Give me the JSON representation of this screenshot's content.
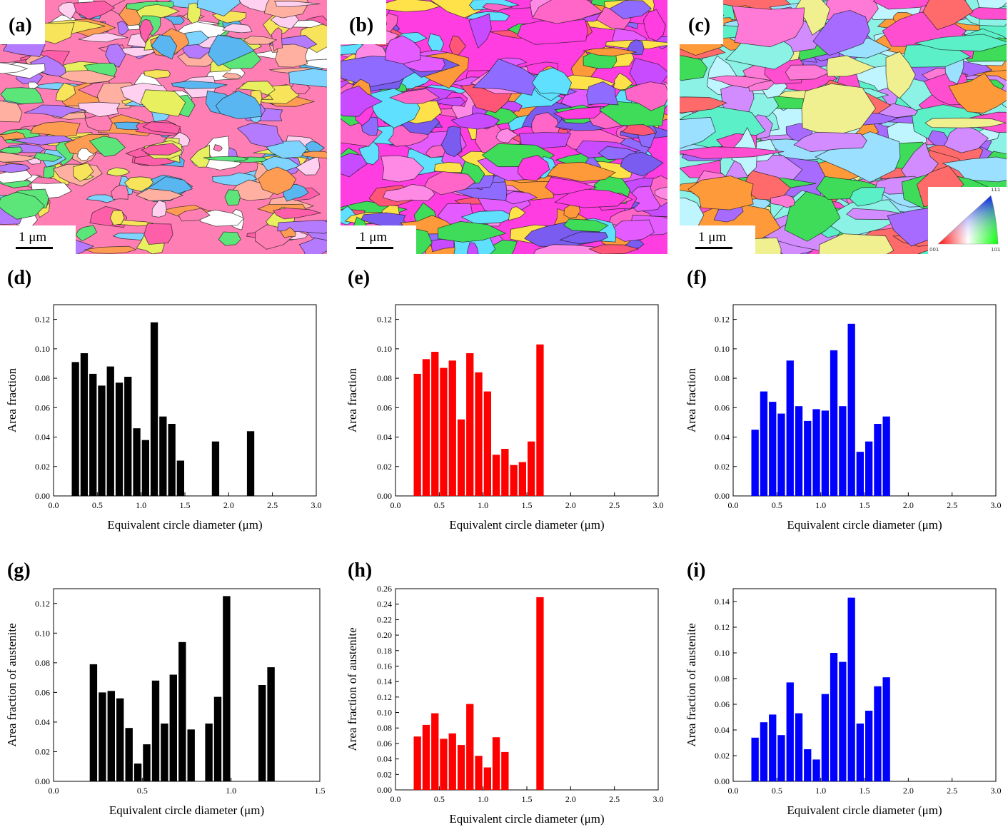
{
  "micrographs": [
    {
      "label": "(a)",
      "scale_text": "1 μm",
      "palette": [
        "#ff7fb4",
        "#f7e45a",
        "#7fd3ff",
        "#ff9c54",
        "#b57bff",
        "#5ce67a",
        "#ff5fa8",
        "#ffd0f0",
        "#59b6f0",
        "#e8f060",
        "#ffb0a0",
        "#ffffff"
      ]
    },
    {
      "label": "(b)",
      "scale_text": "1 μm",
      "palette": [
        "#ff3de0",
        "#c84bff",
        "#7a5cf0",
        "#ff9a3a",
        "#3fdc5a",
        "#ffe14a",
        "#ff66c8",
        "#e45cff",
        "#8f6bff",
        "#ff5577",
        "#5fe0ff",
        "#ff8ae6"
      ]
    },
    {
      "label": "(c)",
      "scale_text": "1 μm",
      "palette": [
        "#8cf2e6",
        "#a86bff",
        "#ff4fd0",
        "#f0f090",
        "#ff6b6b",
        "#5cf0c8",
        "#d28cff",
        "#ff9a3a",
        "#3fdc5a",
        "#bff5ff",
        "#ff7ad6",
        "#9ce0ff"
      ],
      "ipf_key": {
        "corner_top": "111",
        "corner_left": "001",
        "corner_right": "101"
      }
    }
  ],
  "histograms": [
    {
      "label": "(d)",
      "color": "#000000",
      "xlabel": "Equivalent circle diameter (μm)",
      "ylabel": "Area fraction"
    },
    {
      "label": "(e)",
      "color": "#ff0000",
      "xlabel": "Equivalent circle diameter (μm)",
      "ylabel": "Area fraction"
    },
    {
      "label": "(f)",
      "color": "#0000ff",
      "xlabel": "Equivalent circle diameter (μm)",
      "ylabel": "Area fraction"
    },
    {
      "label": "(g)",
      "color": "#000000",
      "xlabel": "Equivalent circle diameter (μm)",
      "ylabel": "Area fraction of austenite"
    },
    {
      "label": "(h)",
      "color": "#ff0000",
      "xlabel": "Equivalent circle diameter (μm)",
      "ylabel": "Area fraction of austenite"
    },
    {
      "label": "(i)",
      "color": "#0000ff",
      "xlabel": "Equivalent circle diameter (μm)",
      "ylabel": "Area fraction of austenite"
    }
  ],
  "chart_data": [
    {
      "type": "bar",
      "label": "(d)",
      "xlabel": "Equivalent circle diameter (μm)",
      "ylabel": "Area fraction",
      "xlim": [
        0.0,
        3.0
      ],
      "ylim": [
        0.0,
        0.13
      ],
      "bar_width": 0.1,
      "xticks": [
        "0.0",
        "0.5",
        "1.0",
        "1.5",
        "2.0",
        "2.5",
        "3.0"
      ],
      "yticks": [
        "0.00",
        "0.02",
        "0.04",
        "0.06",
        "0.08",
        "0.10",
        "0.12"
      ],
      "x": [
        0.25,
        0.35,
        0.45,
        0.55,
        0.65,
        0.75,
        0.85,
        0.95,
        1.05,
        1.15,
        1.25,
        1.35,
        1.45,
        1.85,
        2.25,
        2.35
      ],
      "values": [
        0.091,
        0.097,
        0.083,
        0.075,
        0.088,
        0.077,
        0.081,
        0.046,
        0.038,
        0.118,
        0.054,
        0.049,
        0.024,
        0.037,
        0.044,
        0.0
      ]
    },
    {
      "type": "bar",
      "label": "(e)",
      "xlabel": "Equivalent circle diameter (μm)",
      "ylabel": "Area fraction",
      "xlim": [
        0.0,
        3.0
      ],
      "ylim": [
        0.0,
        0.13
      ],
      "bar_width": 0.1,
      "xticks": [
        "0.0",
        "0.5",
        "1.0",
        "1.5",
        "2.0",
        "2.5",
        "3.0"
      ],
      "yticks": [
        "0.00",
        "0.02",
        "0.04",
        "0.06",
        "0.08",
        "0.10",
        "0.12"
      ],
      "x": [
        0.25,
        0.35,
        0.45,
        0.55,
        0.65,
        0.75,
        0.85,
        0.95,
        1.05,
        1.15,
        1.25,
        1.35,
        1.45,
        1.55,
        1.65,
        2.25,
        2.65
      ],
      "values": [
        0.083,
        0.093,
        0.098,
        0.087,
        0.092,
        0.052,
        0.097,
        0.084,
        0.071,
        0.028,
        0.032,
        0.021,
        0.023,
        0.037,
        0.103,
        0.0,
        0.0
      ]
    },
    {
      "type": "bar",
      "label": "(f)",
      "xlabel": "Equivalent circle diameter (μm)",
      "ylabel": "Area fraction",
      "xlim": [
        0.0,
        3.0
      ],
      "ylim": [
        0.0,
        0.13
      ],
      "bar_width": 0.1,
      "xticks": [
        "0.0",
        "0.5",
        "1.0",
        "1.5",
        "2.0",
        "2.5",
        "3.0"
      ],
      "yticks": [
        "0.00",
        "0.02",
        "0.04",
        "0.06",
        "0.08",
        "0.10",
        "0.12"
      ],
      "x": [
        0.25,
        0.35,
        0.45,
        0.55,
        0.65,
        0.75,
        0.85,
        0.95,
        1.05,
        1.15,
        1.25,
        1.35,
        1.45,
        1.55,
        1.65,
        1.75,
        2.05,
        2.15,
        2.55,
        2.65
      ],
      "values": [
        0.045,
        0.071,
        0.064,
        0.056,
        0.092,
        0.061,
        0.051,
        0.059,
        0.058,
        0.099,
        0.061,
        0.117,
        0.03,
        0.037,
        0.049,
        0.054,
        0.0,
        0.0,
        0.0,
        0.0
      ]
    },
    {
      "type": "bar",
      "label": "(g)",
      "xlabel": "Equivalent circle diameter (μm)",
      "ylabel": "Area fraction of austenite",
      "xlim": [
        0.0,
        1.5
      ],
      "ylim": [
        0.0,
        0.13
      ],
      "bar_width": 0.05,
      "xticks": [
        "0.0",
        "0.5",
        "1.0",
        "1.5"
      ],
      "yticks": [
        "0.00",
        "0.02",
        "0.04",
        "0.06",
        "0.08",
        "0.10",
        "0.12"
      ],
      "x": [
        0.225,
        0.275,
        0.325,
        0.375,
        0.425,
        0.475,
        0.525,
        0.575,
        0.625,
        0.675,
        0.725,
        0.775,
        0.875,
        0.925,
        0.975,
        1.175,
        1.225,
        1.275,
        1.325,
        1.375
      ],
      "values": [
        0.079,
        0.06,
        0.061,
        0.056,
        0.036,
        0.012,
        0.025,
        0.068,
        0.039,
        0.072,
        0.094,
        0.035,
        0.039,
        0.057,
        0.125,
        0.065,
        0.077,
        0.0,
        0.0,
        0.0
      ]
    },
    {
      "type": "bar",
      "label": "(h)",
      "xlabel": "Equivalent circle diameter (μm)",
      "ylabel": "Area fraction of austenite",
      "xlim": [
        0.0,
        3.0
      ],
      "ylim": [
        0.0,
        0.26
      ],
      "bar_width": 0.1,
      "xticks": [
        "0.0",
        "0.5",
        "1.0",
        "1.5",
        "2.0",
        "2.5",
        "3.0"
      ],
      "yticks": [
        "0.00",
        "0.02",
        "0.04",
        "0.06",
        "0.08",
        "0.10",
        "0.12",
        "0.14",
        "0.16",
        "0.18",
        "0.20",
        "0.22",
        "0.24",
        "0.26"
      ],
      "x": [
        0.25,
        0.35,
        0.45,
        0.55,
        0.65,
        0.75,
        0.85,
        0.95,
        1.05,
        1.15,
        1.25,
        1.65,
        2.65
      ],
      "values": [
        0.069,
        0.084,
        0.099,
        0.066,
        0.073,
        0.058,
        0.111,
        0.044,
        0.029,
        0.068,
        0.049,
        0.249,
        0.0
      ]
    },
    {
      "type": "bar",
      "label": "(i)",
      "xlabel": "Equivalent circle diameter (μm)",
      "ylabel": "Area fraction of austenite",
      "xlim": [
        0.0,
        3.0
      ],
      "ylim": [
        0.0,
        0.15
      ],
      "bar_width": 0.1,
      "xticks": [
        "0.0",
        "0.5",
        "1.0",
        "1.5",
        "2.0",
        "2.5",
        "3.0"
      ],
      "yticks": [
        "0.00",
        "0.02",
        "0.04",
        "0.06",
        "0.08",
        "0.10",
        "0.12",
        "0.14"
      ],
      "x": [
        0.25,
        0.35,
        0.45,
        0.55,
        0.65,
        0.75,
        0.85,
        0.95,
        1.05,
        1.15,
        1.25,
        1.35,
        1.45,
        1.55,
        1.65,
        1.75,
        2.05,
        2.15,
        2.55,
        2.65
      ],
      "values": [
        0.034,
        0.046,
        0.052,
        0.036,
        0.077,
        0.053,
        0.025,
        0.017,
        0.068,
        0.1,
        0.093,
        0.143,
        0.045,
        0.055,
        0.074,
        0.081,
        0.0,
        0.0,
        0.0,
        0.0
      ]
    }
  ]
}
